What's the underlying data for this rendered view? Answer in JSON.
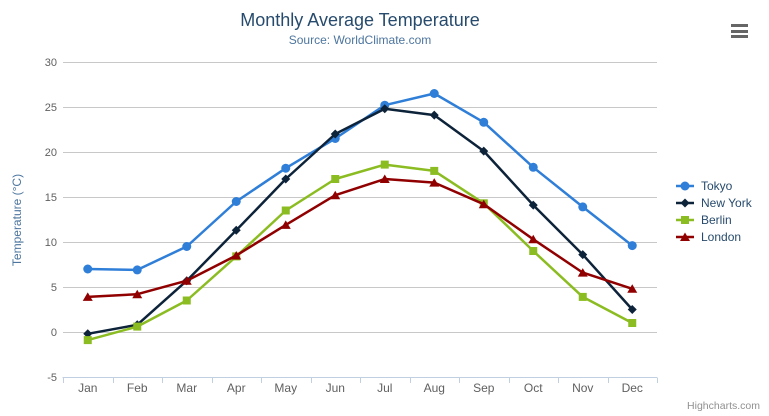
{
  "header": {
    "title": "Monthly Average Temperature",
    "subtitle": "Source: WorldClimate.com"
  },
  "export_menu": {
    "icon": "hamburger"
  },
  "credits": {
    "label": "Highcharts.com"
  },
  "colors": {
    "title_text": "#274b6d",
    "subtitle_text": "#4d759e",
    "axis_title_text": "#4d759e",
    "axis_label_text": "#606060",
    "gridline": "#c8c8c8",
    "axis_line": "#c0d0e0",
    "legend_text": "#274b6d",
    "credits_text": "#909090",
    "menu_icon": "#666666"
  },
  "chart_data": {
    "type": "line",
    "title": "Monthly Average Temperature",
    "subtitle": "Source: WorldClimate.com",
    "categories": [
      "Jan",
      "Feb",
      "Mar",
      "Apr",
      "May",
      "Jun",
      "Jul",
      "Aug",
      "Sep",
      "Oct",
      "Nov",
      "Dec"
    ],
    "series": [
      {
        "name": "Tokyo",
        "color": "#2f7ed8",
        "marker": "circle",
        "values": [
          7.0,
          6.9,
          9.5,
          14.5,
          18.2,
          21.5,
          25.2,
          26.5,
          23.3,
          18.3,
          13.9,
          9.6
        ]
      },
      {
        "name": "New York",
        "color": "#0d233a",
        "marker": "diamond",
        "values": [
          -0.2,
          0.8,
          5.7,
          11.3,
          17.0,
          22.0,
          24.8,
          24.1,
          20.1,
          14.1,
          8.6,
          2.5
        ]
      },
      {
        "name": "Berlin",
        "color": "#8bbc21",
        "marker": "square",
        "values": [
          -0.9,
          0.6,
          3.5,
          8.4,
          13.5,
          17.0,
          18.6,
          17.9,
          14.3,
          9.0,
          3.9,
          1.0
        ]
      },
      {
        "name": "London",
        "color": "#910000",
        "marker": "triangle",
        "values": [
          3.9,
          4.2,
          5.7,
          8.5,
          11.9,
          15.2,
          17.0,
          16.6,
          14.2,
          10.3,
          6.6,
          4.8
        ]
      }
    ],
    "xlabel": "",
    "ylabel": "Temperature (°C)",
    "ylim": [
      -5,
      30
    ],
    "ytick_step": 5,
    "grid": true,
    "legend_position": "right"
  }
}
